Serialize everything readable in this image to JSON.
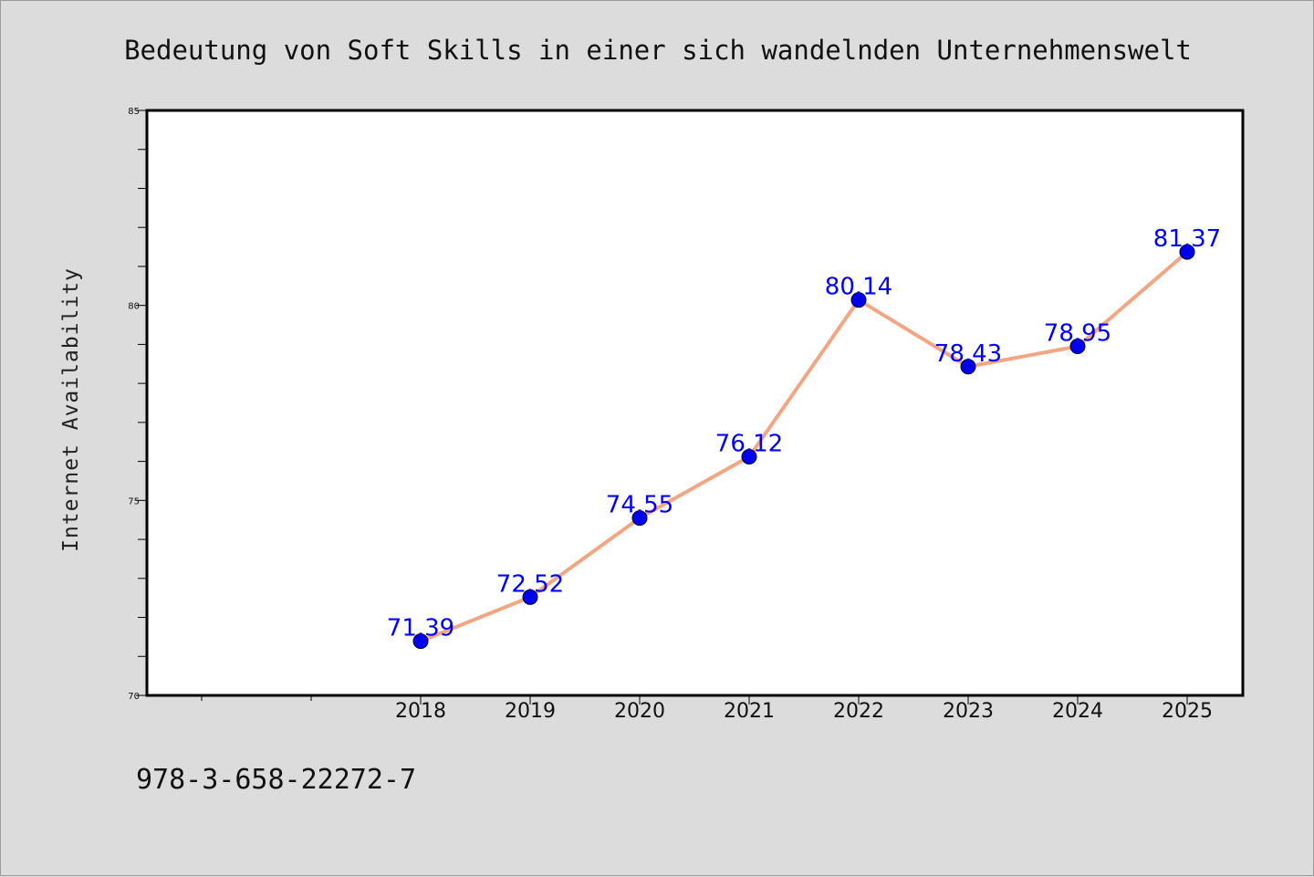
{
  "chart_data": {
    "type": "line",
    "title": "Bedeutung von Soft Skills in einer sich wandelnden Unternehmenswelt",
    "ylabel": "Internet Availability",
    "categories": [
      "2018",
      "2019",
      "2020",
      "2021",
      "2022",
      "2023",
      "2024",
      "2025"
    ],
    "series": [
      {
        "values": [
          71.39,
          72.52,
          74.55,
          76.12,
          80.14,
          78.43,
          78.95,
          81.37
        ]
      }
    ],
    "ylim": [
      70,
      85
    ],
    "yticks": [
      "70",
      "75",
      "80",
      "85"
    ],
    "grid": false,
    "line_color": "#f4a582",
    "marker_color": "#0000ee",
    "label_color": "#0000ff"
  },
  "footer": {
    "text": "978-3-658-22272-7"
  }
}
